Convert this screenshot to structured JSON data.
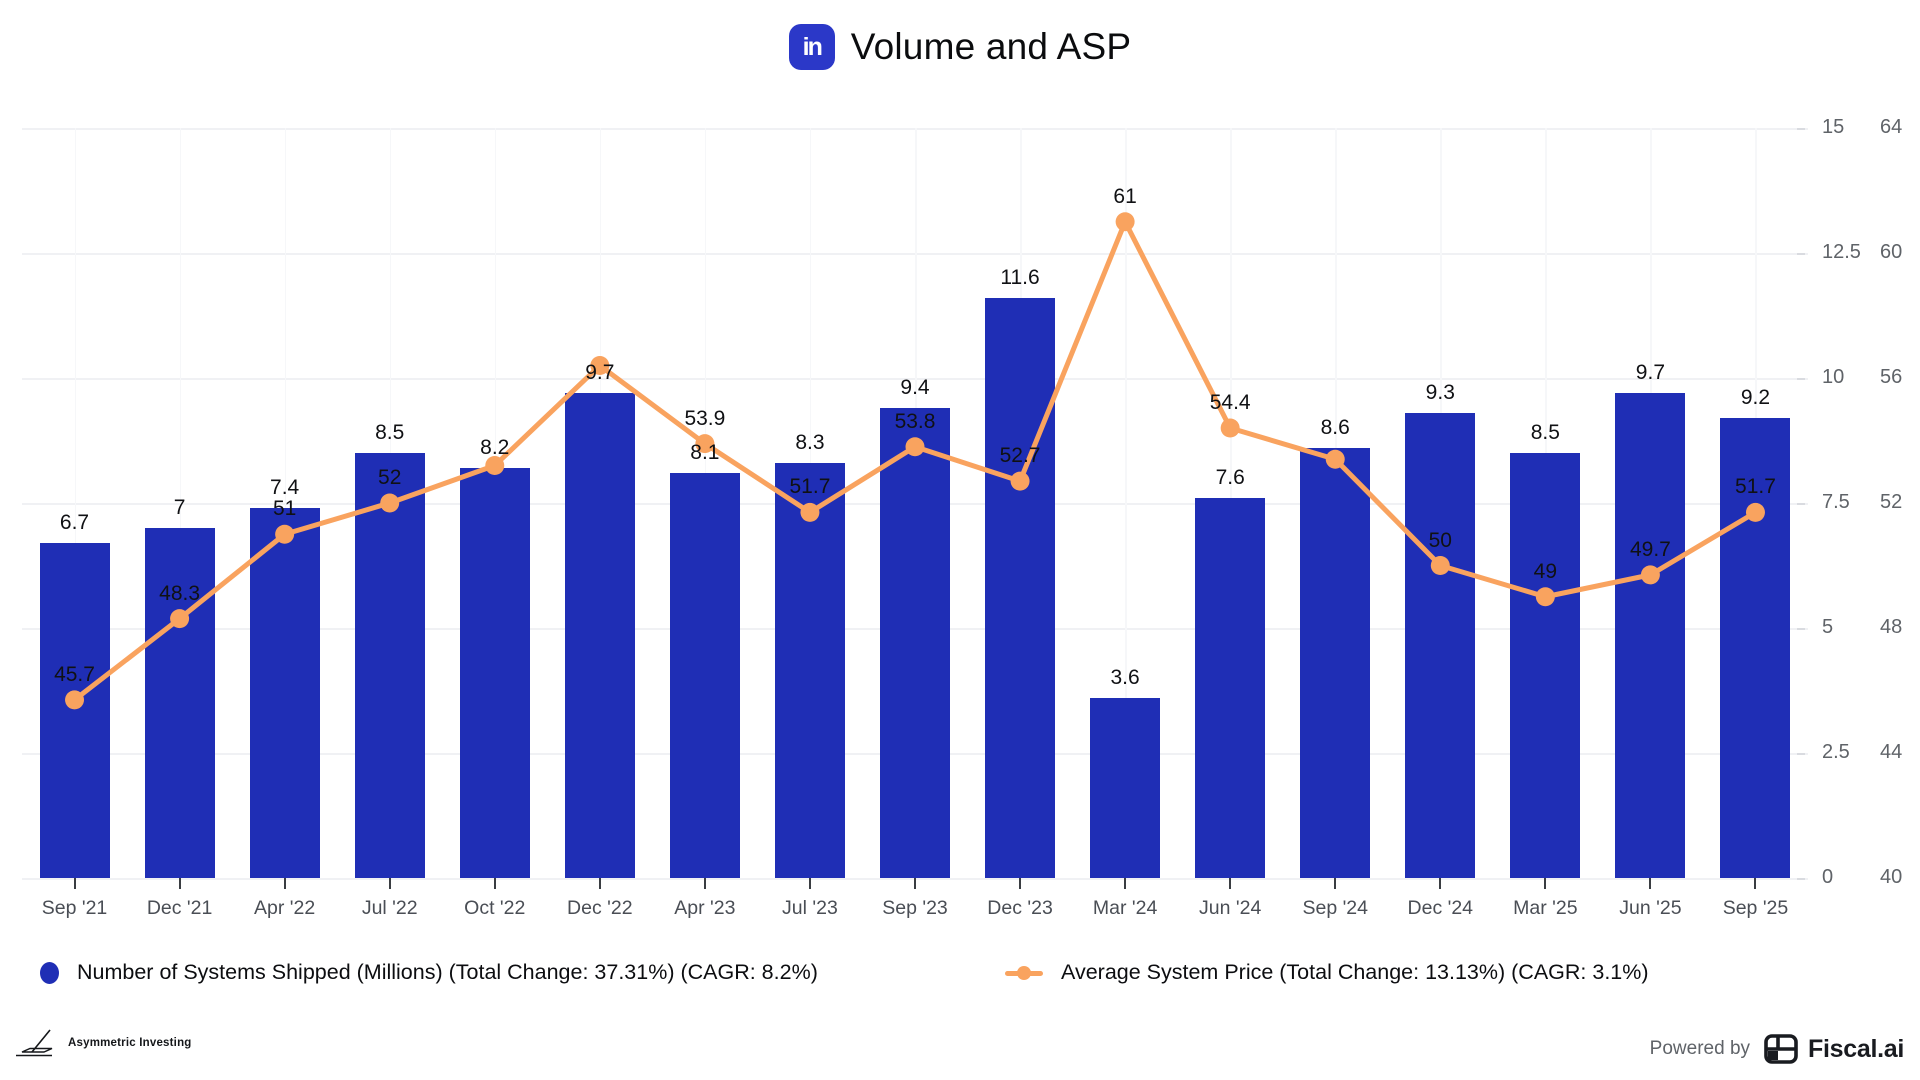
{
  "header": {
    "title": "Volume and ASP",
    "logo_glyph": "in",
    "logo_color": "#2b38c8"
  },
  "chart_data": {
    "type": "bar",
    "subtype": "bar+line combo, dual y-axis",
    "categories": [
      "Sep '21",
      "Dec '21",
      "Apr '22",
      "Jul '22",
      "Oct '22",
      "Dec '22",
      "Apr '23",
      "Jul '23",
      "Sep '23",
      "Dec '23",
      "Mar '24",
      "Jun '24",
      "Sep '24",
      "Dec '24",
      "Mar '25",
      "Jun '25",
      "Sep '25"
    ],
    "series": [
      {
        "name": "Number of Systems Shipped (Millions) (Total Change: 37.31%) (CAGR: 8.2%)",
        "type": "bar",
        "axis": "left",
        "color": "#1f2eb5",
        "values": [
          6.7,
          7,
          7.4,
          8.5,
          8.2,
          9.7,
          8.1,
          8.3,
          9.4,
          11.6,
          3.6,
          7.6,
          8.6,
          9.3,
          8.5,
          9.7,
          9.2
        ],
        "labels": [
          "6.7",
          "7",
          "7.4",
          "8.5",
          "8.2",
          "9.7",
          "8.1",
          "8.3",
          "9.4",
          "11.6",
          "3.6",
          "7.6",
          "8.6",
          "9.3",
          "8.5",
          "9.7",
          "9.2"
        ]
      },
      {
        "name": "Average System Price (Total Change: 13.13%) (CAGR: 3.1%)",
        "type": "line",
        "axis": "right",
        "color": "#f9a35f",
        "values": [
          45.7,
          48.3,
          51,
          52,
          53.2,
          56.4,
          53.9,
          51.7,
          53.8,
          52.7,
          61,
          54.4,
          53.4,
          50,
          49,
          49.7,
          51.7
        ],
        "labels": [
          "45.7",
          "48.3",
          "51",
          "52",
          "",
          "",
          "53.9",
          "51.7",
          "53.8",
          "52.7",
          "61",
          "54.4",
          "",
          "50",
          "49",
          "49.7",
          "51.7"
        ]
      }
    ],
    "left_axis": {
      "min": 0,
      "max": 15,
      "ticks": [
        "15",
        "12.5",
        "10",
        "7.5",
        "5",
        "2.5",
        "0"
      ]
    },
    "right_axis": {
      "min": 40,
      "max": 64,
      "ticks": [
        "64",
        "60",
        "56",
        "52",
        "48",
        "44",
        "40"
      ]
    },
    "grid": true,
    "legend_position": "bottom",
    "title": "Volume and ASP"
  },
  "legend": {
    "bars_label": "Number of Systems Shipped (Millions) (Total Change: 37.31%) (CAGR: 8.2%)",
    "line_label": "Average System Price (Total Change: 13.13%) (CAGR: 3.1%)"
  },
  "footer": {
    "brand_left": "Asymmetric Investing",
    "powered_by": "Powered by",
    "brand_right": "Fiscal.ai"
  }
}
